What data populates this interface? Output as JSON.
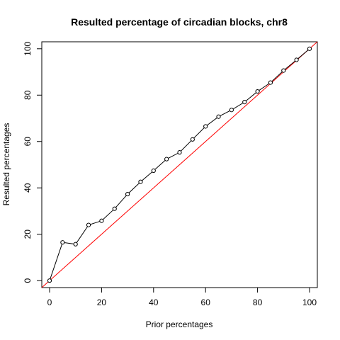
{
  "chart_data": {
    "type": "line",
    "title": "Resulted percentage of circadian blocks, chr8",
    "xlabel": "Prior percentages",
    "ylabel": "Resulted percentages",
    "xlim": [
      -3,
      103
    ],
    "ylim": [
      -3,
      103
    ],
    "xticks": [
      0,
      20,
      40,
      60,
      80,
      100
    ],
    "yticks": [
      0,
      20,
      40,
      60,
      80,
      100
    ],
    "grid": false,
    "series": [
      {
        "kind": "line-with-points",
        "color": "#000000",
        "x": [
          0,
          5,
          10,
          15,
          20,
          25,
          30,
          35,
          40,
          45,
          50,
          55,
          60,
          65,
          70,
          75,
          80,
          85,
          90,
          95,
          100
        ],
        "y": [
          0,
          16.5,
          15.7,
          24,
          25.8,
          31,
          37.3,
          42.6,
          47.4,
          52.4,
          55.3,
          60.9,
          66.5,
          70.7,
          73.6,
          77,
          81.6,
          85.4,
          90.6,
          95.2,
          100
        ]
      },
      {
        "kind": "reference-line",
        "color": "#ff0000",
        "x": [
          -3,
          103
        ],
        "y": [
          -3,
          103
        ]
      }
    ]
  }
}
